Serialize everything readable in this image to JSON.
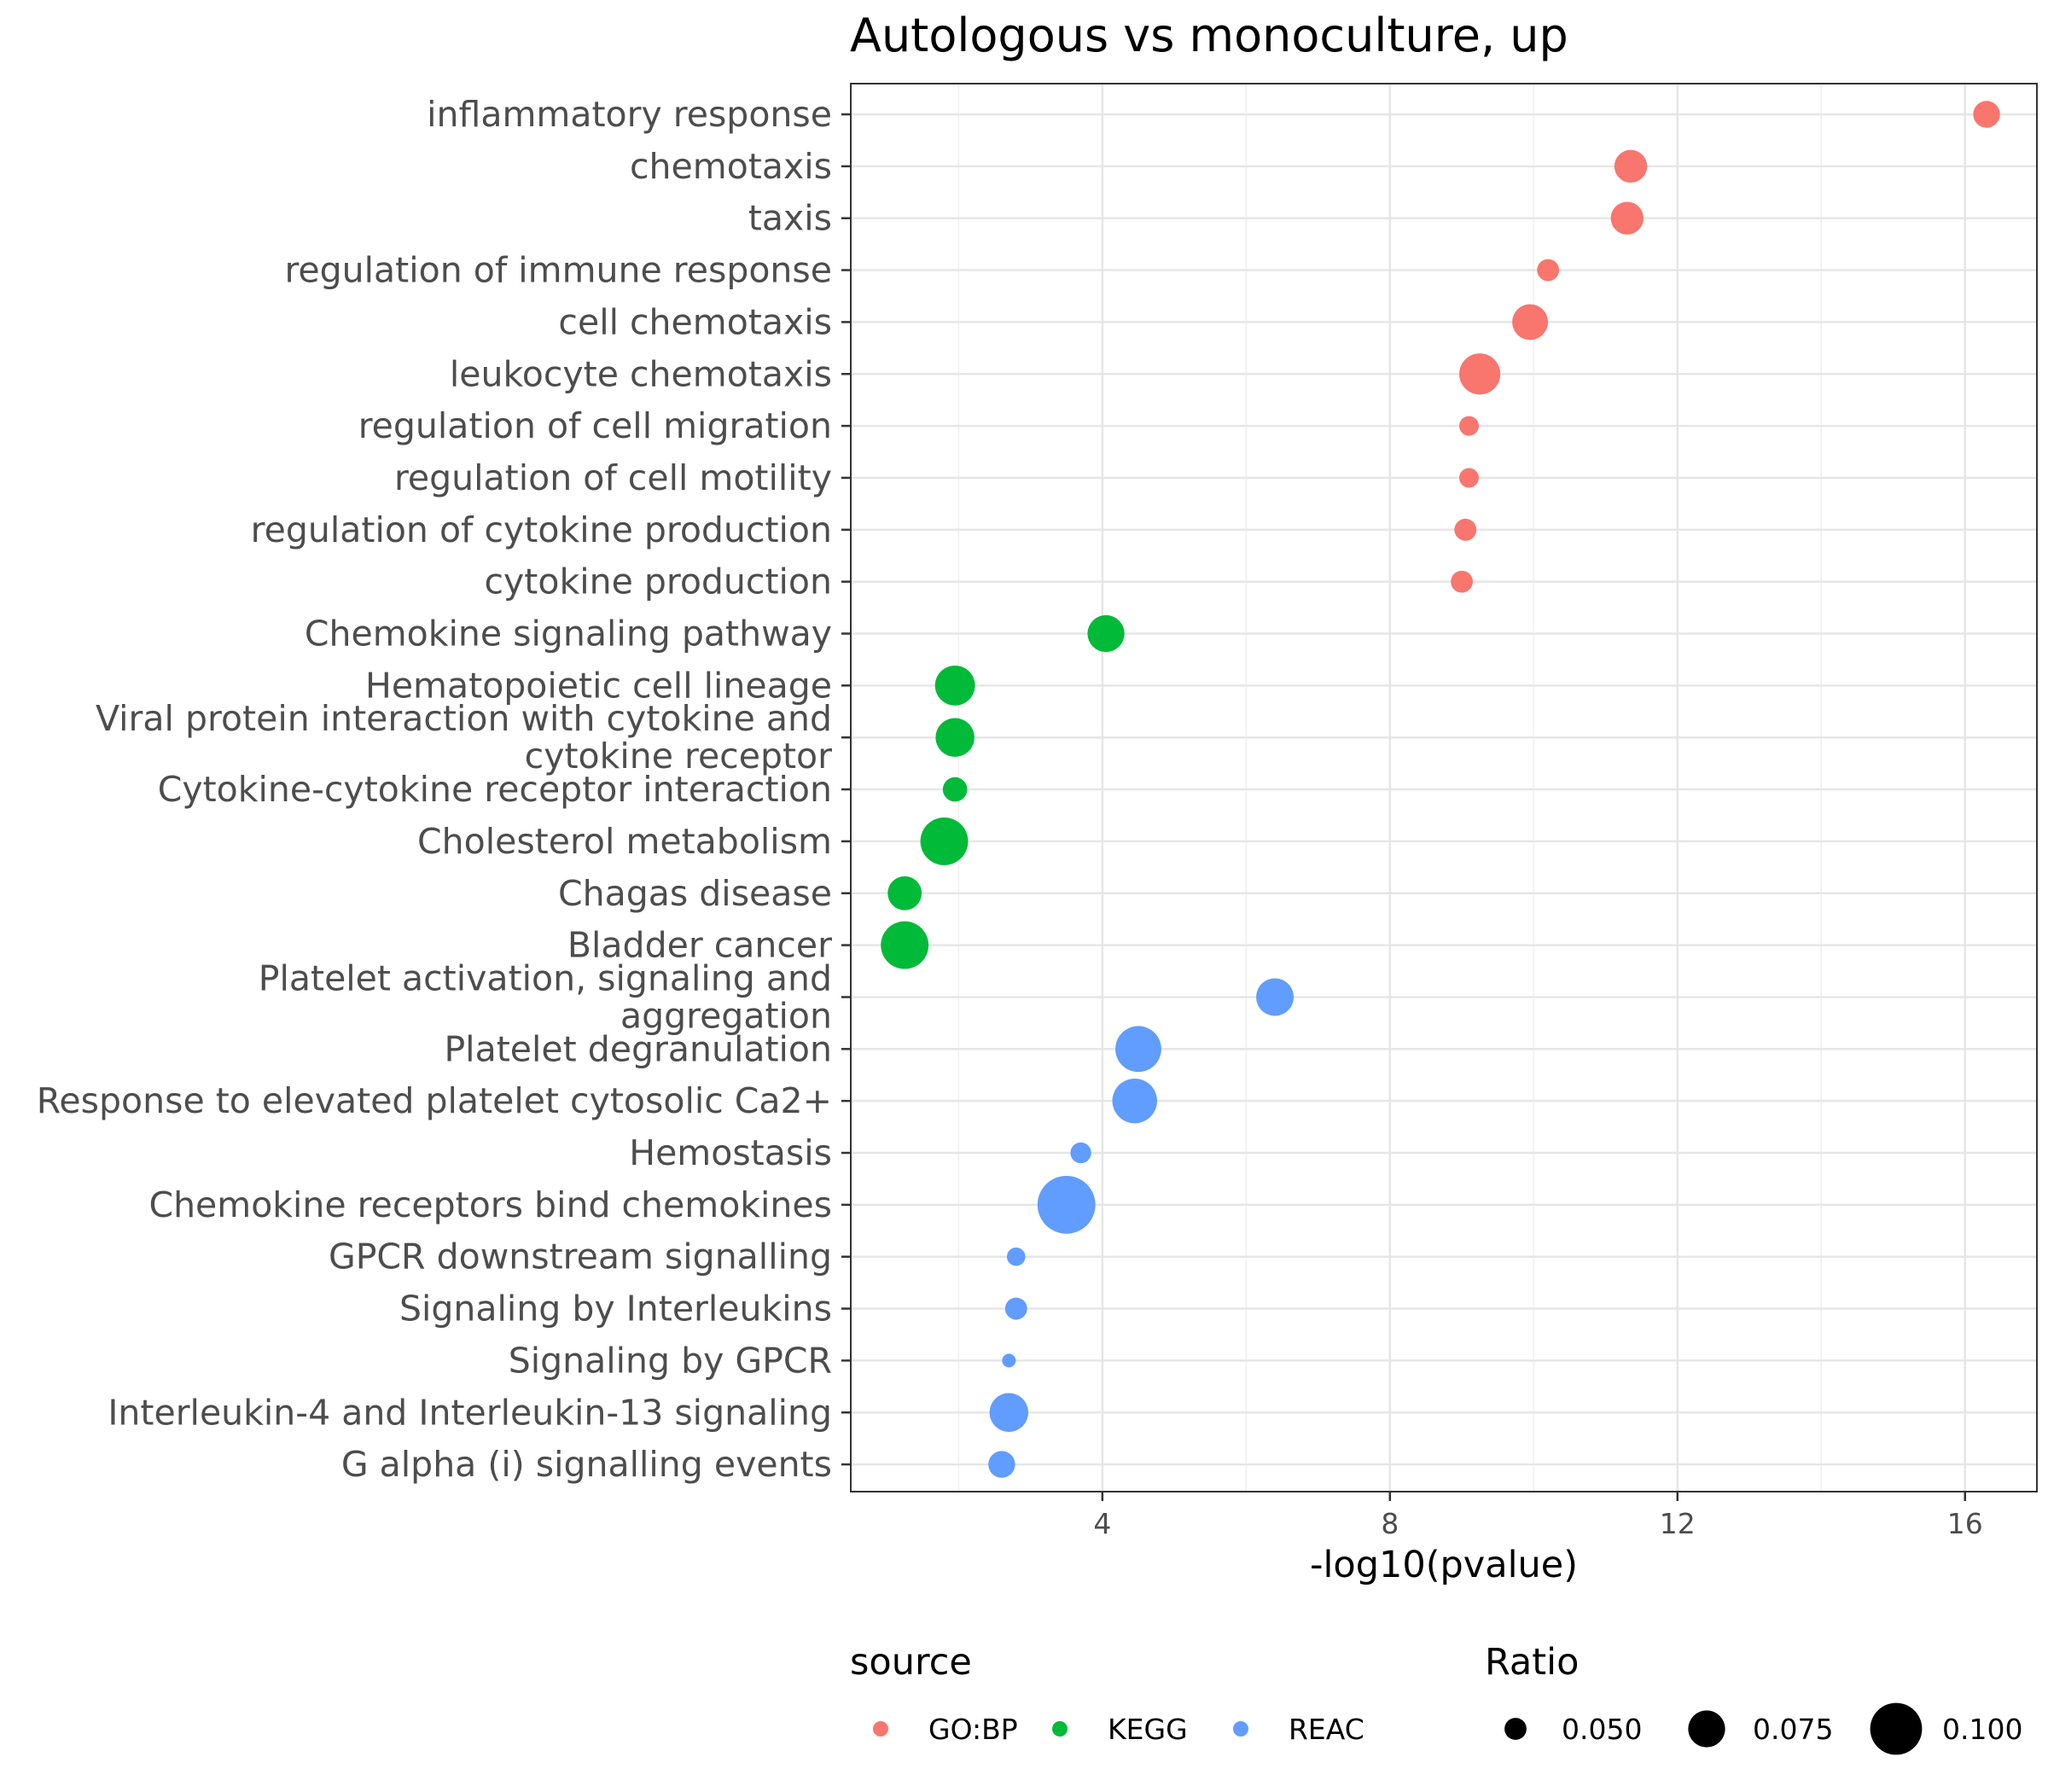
{
  "chart_data": {
    "type": "scatter",
    "title": "Autologous vs monoculture, up",
    "xlabel": "-log10(pvalue)",
    "ylabel": "",
    "xlim": [
      0.5,
      17.0
    ],
    "x_ticks": [
      4,
      8,
      12,
      16
    ],
    "grid": true,
    "legend_placement": "bottom",
    "categories": [
      "inflammatory response",
      "chemotaxis",
      "taxis",
      "regulation of immune response",
      "cell chemotaxis",
      "leukocyte chemotaxis",
      "regulation of cell migration",
      "regulation of cell motility",
      "regulation of cytokine production",
      "cytokine production",
      "Chemokine signaling pathway",
      "Hematopoietic cell lineage",
      "Viral protein interaction with cytokine and cytokine receptor",
      "Cytokine-cytokine receptor interaction",
      "Cholesterol metabolism",
      "Chagas disease",
      "Bladder cancer",
      "Platelet activation, signaling and aggregation",
      "Platelet degranulation",
      "Response to elevated platelet cytosolic Ca2+",
      "Hemostasis",
      "Chemokine receptors bind chemokines",
      "GPCR downstream signalling",
      "Signaling by Interleukins",
      "Signaling by GPCR",
      "Interleukin-4 and Interleukin-13 signaling",
      "G alpha (i) signalling events"
    ],
    "category_display": [
      [
        "inflammatory response"
      ],
      [
        "chemotaxis"
      ],
      [
        "taxis"
      ],
      [
        "regulation of immune response"
      ],
      [
        "cell chemotaxis"
      ],
      [
        "leukocyte chemotaxis"
      ],
      [
        "regulation of cell migration"
      ],
      [
        "regulation of cell motility"
      ],
      [
        "regulation of cytokine production"
      ],
      [
        "cytokine production"
      ],
      [
        "Chemokine signaling pathway"
      ],
      [
        "Hematopoietic cell lineage"
      ],
      [
        "Viral protein interaction with cytokine and",
        "cytokine receptor"
      ],
      [
        "Cytokine-cytokine receptor interaction"
      ],
      [
        "Cholesterol metabolism"
      ],
      [
        "Chagas disease"
      ],
      [
        "Bladder cancer"
      ],
      [
        "Platelet activation, signaling and",
        "aggregation"
      ],
      [
        "Platelet degranulation"
      ],
      [
        "Response to elevated platelet cytosolic Ca2+"
      ],
      [
        "Hemostasis"
      ],
      [
        "Chemokine receptors bind chemokines"
      ],
      [
        "GPCR downstream signalling"
      ],
      [
        "Signaling by Interleukins"
      ],
      [
        "Signaling by GPCR"
      ],
      [
        "Interleukin-4 and Interleukin-13 signaling"
      ],
      [
        "G alpha (i) signalling events"
      ]
    ],
    "series": [
      {
        "name": "GO:BP",
        "color": "#F8766D",
        "points": [
          {
            "term": "inflammatory response",
            "x": 16.3,
            "ratio": 0.058
          },
          {
            "term": "chemotaxis",
            "x": 11.35,
            "ratio": 0.068
          },
          {
            "term": "taxis",
            "x": 11.3,
            "ratio": 0.068
          },
          {
            "term": "regulation of immune response",
            "x": 10.2,
            "ratio": 0.05
          },
          {
            "term": "cell chemotaxis",
            "x": 9.95,
            "ratio": 0.073
          },
          {
            "term": "leukocyte chemotaxis",
            "x": 9.25,
            "ratio": 0.082
          },
          {
            "term": "regulation of cell migration",
            "x": 9.1,
            "ratio": 0.046
          },
          {
            "term": "regulation of cell motility",
            "x": 9.1,
            "ratio": 0.046
          },
          {
            "term": "regulation of cytokine production",
            "x": 9.05,
            "ratio": 0.05
          },
          {
            "term": "cytokine production",
            "x": 9.0,
            "ratio": 0.05
          }
        ]
      },
      {
        "name": "KEGG",
        "color": "#00BA38",
        "points": [
          {
            "term": "Chemokine signaling pathway",
            "x": 4.05,
            "ratio": 0.075
          },
          {
            "term": "Hematopoietic cell lineage",
            "x": 1.95,
            "ratio": 0.08
          },
          {
            "term": "Viral protein interaction with cytokine and cytokine receptor",
            "x": 1.95,
            "ratio": 0.078
          },
          {
            "term": "Cytokine-cytokine receptor interaction",
            "x": 1.95,
            "ratio": 0.054
          },
          {
            "term": "Cholesterol metabolism",
            "x": 1.8,
            "ratio": 0.093
          },
          {
            "term": "Chagas disease",
            "x": 1.25,
            "ratio": 0.07
          },
          {
            "term": "Bladder cancer",
            "x": 1.25,
            "ratio": 0.093
          }
        ]
      },
      {
        "name": "REAC",
        "color": "#619CFF",
        "points": [
          {
            "term": "Platelet activation, signaling and aggregation",
            "x": 6.4,
            "ratio": 0.076
          },
          {
            "term": "Platelet degranulation",
            "x": 4.5,
            "ratio": 0.09
          },
          {
            "term": "Response to elevated platelet cytosolic Ca2+",
            "x": 4.45,
            "ratio": 0.088
          },
          {
            "term": "Hemostasis",
            "x": 3.7,
            "ratio": 0.048
          },
          {
            "term": "Chemokine receptors bind chemokines",
            "x": 3.5,
            "ratio": 0.11
          },
          {
            "term": "GPCR downstream signalling",
            "x": 2.8,
            "ratio": 0.044
          },
          {
            "term": "Signaling by Interleukins",
            "x": 2.8,
            "ratio": 0.05
          },
          {
            "term": "Signaling by GPCR",
            "x": 2.7,
            "ratio": 0.036
          },
          {
            "term": "Interleukin-4 and Interleukin-13 signaling",
            "x": 2.7,
            "ratio": 0.078
          },
          {
            "term": "G alpha (i) signalling events",
            "x": 2.6,
            "ratio": 0.058
          }
        ]
      }
    ],
    "legends": {
      "color": {
        "title": "source",
        "entries": [
          {
            "label": "GO:BP",
            "color": "#F8766D"
          },
          {
            "label": "KEGG",
            "color": "#00BA38"
          },
          {
            "label": "REAC",
            "color": "#619CFF"
          }
        ]
      },
      "size": {
        "title": "Ratio",
        "entries": [
          {
            "label": "0.050",
            "value": 0.05
          },
          {
            "label": "0.075",
            "value": 0.075
          },
          {
            "label": "0.100",
            "value": 0.1
          }
        ]
      }
    }
  }
}
